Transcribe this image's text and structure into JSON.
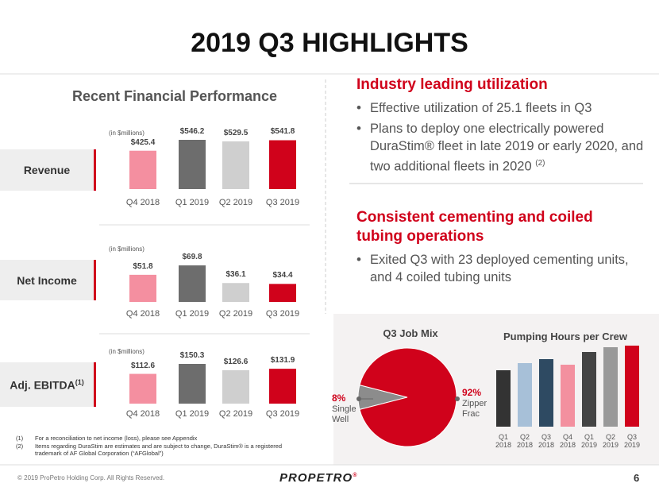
{
  "title": "2019 Q3 HIGHLIGHTS",
  "left_heading": "Recent Financial Performance",
  "chart_data": [
    {
      "type": "bar",
      "title": "Revenue",
      "subtitle": "(in $millions)",
      "categories": [
        "Q4 2018",
        "Q1 2019",
        "Q2 2019",
        "Q3 2019"
      ],
      "values": [
        425.4,
        546.2,
        529.5,
        541.8
      ],
      "value_labels": [
        "$425.4",
        "$546.2",
        "$529.5",
        "$541.8"
      ],
      "colors": [
        "#f48fa0",
        "#6d6d6d",
        "#cfcfcf",
        "#d0021b"
      ]
    },
    {
      "type": "bar",
      "title": "Net Income",
      "subtitle": "(in $millions)",
      "categories": [
        "Q4 2018",
        "Q1 2019",
        "Q2 2019",
        "Q3 2019"
      ],
      "values": [
        51.8,
        69.8,
        36.1,
        34.4
      ],
      "value_labels": [
        "$51.8",
        "$69.8",
        "$36.1",
        "$34.4"
      ],
      "colors": [
        "#f48fa0",
        "#6d6d6d",
        "#cfcfcf",
        "#d0021b"
      ]
    },
    {
      "type": "bar",
      "title": "Adj. EBITDA",
      "title_note": "(1)",
      "subtitle": "(in $millions)",
      "categories": [
        "Q4 2018",
        "Q1 2019",
        "Q2 2019",
        "Q3 2019"
      ],
      "values": [
        112.6,
        150.3,
        126.6,
        131.9
      ],
      "value_labels": [
        "$112.6",
        "$150.3",
        "$126.6",
        "$131.9"
      ],
      "colors": [
        "#f48fa0",
        "#6d6d6d",
        "#cfcfcf",
        "#d0021b"
      ]
    },
    {
      "type": "pie",
      "title": "Q3 Job Mix",
      "categories": [
        "Single Well",
        "Zipper Frac"
      ],
      "values": [
        8,
        92
      ],
      "value_labels": [
        "8%",
        "92%"
      ],
      "colors": [
        "#8c8c8c",
        "#d0021b"
      ]
    },
    {
      "type": "bar",
      "title": "Pumping Hours per Crew",
      "categories": [
        "Q1 2018",
        "Q2 2018",
        "Q3 2018",
        "Q4 2018",
        "Q1 2019",
        "Q2 2019",
        "Q3 2019"
      ],
      "values": [
        71,
        80,
        85,
        78,
        94,
        100,
        102
      ],
      "colors": [
        "#333333",
        "#a7c0d8",
        "#2e4a62",
        "#f3909f",
        "#444444",
        "#999999",
        "#d0021b"
      ]
    }
  ],
  "sections": [
    {
      "heading": "Industry leading utilization",
      "bullets": [
        {
          "text": "Effective utilization of 25.1 fleets in Q3"
        },
        {
          "text": "Plans to deploy one electrically powered DuraStim® fleet in late 2019 or early 2020, and two additional fleets in 2020",
          "note": "(2)"
        }
      ]
    },
    {
      "heading": "Consistent cementing and coiled tubing operations",
      "bullets": [
        {
          "text": "Exited Q3 with 23 deployed cementing units, and 4 coiled tubing units"
        }
      ]
    }
  ],
  "footnotes": [
    {
      "marker": "(1)",
      "text": "For a reconciliation to net income (loss), please see Appendix"
    },
    {
      "marker": "(2)",
      "text": "Items regarding DuraStim are estimates and are subject to change, DuraStim® is a registered trademark of AF Global Corporation (“AFGlobal”)"
    }
  ],
  "footer": {
    "copyright": "© 2019 ProPetro Holding Corp. All Rights Reserved.",
    "logo": "PROPETRO",
    "logo_mark": "®",
    "page": "6"
  }
}
